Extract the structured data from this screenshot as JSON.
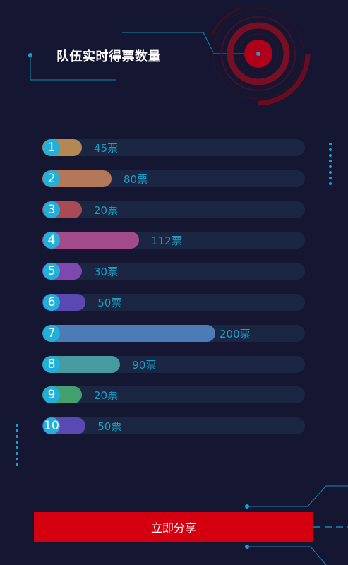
{
  "header": {
    "title": "队伍实时得票数量"
  },
  "unit": "票",
  "max_votes": 200,
  "teams": [
    {
      "rank": "1",
      "votes": 45,
      "votes_label": "45票",
      "color": "#b38852"
    },
    {
      "rank": "2",
      "votes": 80,
      "votes_label": "80票",
      "color": "#b3785a"
    },
    {
      "rank": "3",
      "votes": 20,
      "votes_label": "20票",
      "color": "#a84b57"
    },
    {
      "rank": "4",
      "votes": 112,
      "votes_label": "112票",
      "color": "#a44b8c"
    },
    {
      "rank": "5",
      "votes": 30,
      "votes_label": "30票",
      "color": "#7f48b0"
    },
    {
      "rank": "6",
      "votes": 50,
      "votes_label": "50票",
      "color": "#5a48b3"
    },
    {
      "rank": "7",
      "votes": 200,
      "votes_label": "200票",
      "color": "#4c7cb8"
    },
    {
      "rank": "8",
      "votes": 90,
      "votes_label": "90票",
      "color": "#469aa0"
    },
    {
      "rank": "9",
      "votes": 20,
      "votes_label": "20票",
      "color": "#45a070"
    },
    {
      "rank": "10",
      "votes": 50,
      "votes_label": "50票",
      "color": "#5a48b3"
    }
  ],
  "share_button": {
    "label": "立即分享"
  },
  "colors": {
    "background": "#151631",
    "accent": "#1fb0dc",
    "track": "#1b2742",
    "button": "#d5000f",
    "radar": "#b0001a"
  },
  "icons": [
    "radar-target-icon",
    "dotted-line-decoration",
    "circuit-line-decoration"
  ]
}
